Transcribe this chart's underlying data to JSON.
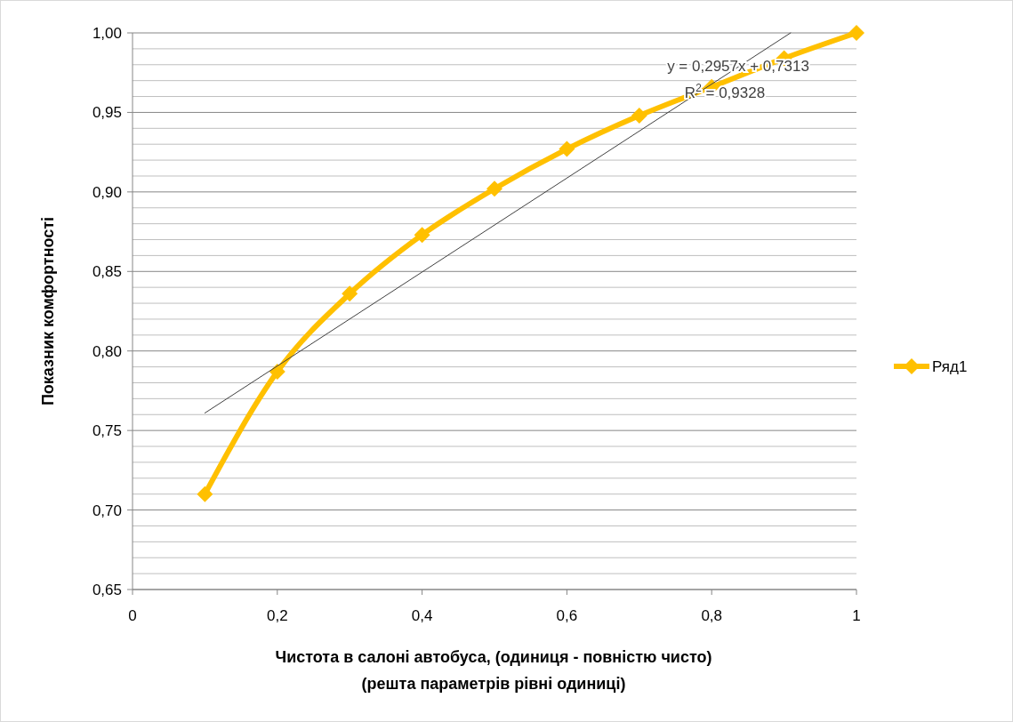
{
  "chart_data": {
    "type": "line",
    "xlabel": "Чистота в салоні автобуса, (одиниця - повністю чисто)\n(решта параметрів рівні одиниці)",
    "ylabel": "Показник комфортності",
    "xlim": [
      0,
      1
    ],
    "xticks": [
      0,
      {
        "value": 0.2,
        "label": "0,2"
      },
      {
        "value": 0.4,
        "label": "0,4"
      },
      {
        "value": 0.6,
        "label": "0,6"
      },
      {
        "value": 0.8,
        "label": "0,8"
      },
      1
    ],
    "ylim": [
      0.65,
      1.0
    ],
    "yticks": [
      {
        "value": 0.65,
        "label": "0,65"
      },
      {
        "value": 0.66,
        "label": null
      },
      {
        "value": 0.67,
        "label": null
      },
      {
        "value": 0.68,
        "label": null
      },
      {
        "value": 0.69,
        "label": null
      },
      {
        "value": 0.7,
        "label": "0,70"
      },
      {
        "value": 0.71,
        "label": null
      },
      {
        "value": 0.72,
        "label": null
      },
      {
        "value": 0.73,
        "label": null
      },
      {
        "value": 0.74,
        "label": null
      },
      {
        "value": 0.75,
        "label": "0,75"
      },
      {
        "value": 0.76,
        "label": null
      },
      {
        "value": 0.77,
        "label": null
      },
      {
        "value": 0.78,
        "label": null
      },
      {
        "value": 0.79,
        "label": null
      },
      {
        "value": 0.8,
        "label": "0,80"
      },
      {
        "value": 0.81,
        "label": null
      },
      {
        "value": 0.82,
        "label": null
      },
      {
        "value": 0.83,
        "label": null
      },
      {
        "value": 0.84,
        "label": null
      },
      {
        "value": 0.85,
        "label": "0,85"
      },
      {
        "value": 0.86,
        "label": null
      },
      {
        "value": 0.87,
        "label": null
      },
      {
        "value": 0.88,
        "label": null
      },
      {
        "value": 0.89,
        "label": null
      },
      {
        "value": 0.9,
        "label": "0,90"
      },
      {
        "value": 0.91,
        "label": null
      },
      {
        "value": 0.92,
        "label": null
      },
      {
        "value": 0.93,
        "label": null
      },
      {
        "value": 0.94,
        "label": null
      },
      {
        "value": 0.95,
        "label": "0,95"
      },
      {
        "value": 0.96,
        "label": null
      },
      {
        "value": 0.97,
        "label": null
      },
      {
        "value": 0.98,
        "label": null
      },
      {
        "value": 0.99,
        "label": null
      },
      {
        "value": 1.0,
        "label": "1,00"
      }
    ],
    "grid": "y",
    "legend": "right",
    "series": [
      {
        "name": "Ряд1",
        "color": "#ffc000",
        "marker": "diamond",
        "x": [
          0.1,
          0.2,
          0.3,
          0.4,
          0.5,
          0.6,
          0.7,
          0.8,
          0.9,
          1.0
        ],
        "values": [
          0.71,
          0.787,
          0.836,
          0.873,
          0.902,
          0.927,
          0.948,
          0.966,
          0.984,
          1.0
        ]
      },
      {
        "color": "#404040",
        "marker": "none",
        "x": [
          0.1,
          0.909
        ],
        "values": [
          0.761,
          1.0
        ]
      }
    ],
    "annotations": [
      "y = 0,2957x + 0,7313",
      "R$^{2}$ = 0,9328"
    ]
  }
}
